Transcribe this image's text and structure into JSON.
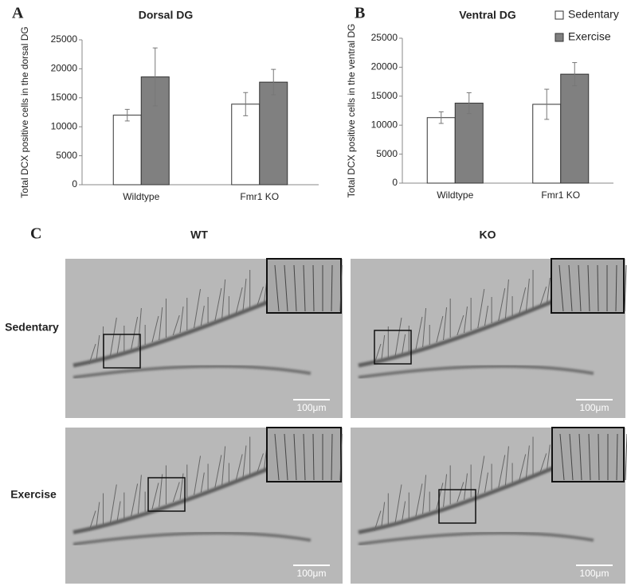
{
  "chart_data": [
    {
      "type": "bar",
      "panel": "A",
      "title": "Dorsal DG",
      "y_label": "Total DCX positive cells in the dorsal DG",
      "categories": [
        "Wildtype",
        "Fmr1 KO"
      ],
      "series": [
        {
          "color": "#ffffff",
          "values": [
            12000,
            13900
          ],
          "errors": [
            1000,
            2000
          ]
        },
        {
          "color": "#808080",
          "values": [
            18600,
            17700
          ],
          "errors": [
            5000,
            2200
          ]
        }
      ],
      "ylim": [
        0,
        25000
      ],
      "yticks": [
        0,
        5000,
        10000,
        15000,
        20000,
        25000
      ]
    },
    {
      "type": "bar",
      "panel": "B",
      "title": "Ventral DG",
      "y_label": "Total DCX positive cells in the ventral DG",
      "categories": [
        "Wildtype",
        "Fmr1 KO"
      ],
      "series": [
        {
          "name": "Sedentary",
          "color": "#ffffff",
          "values": [
            11300,
            13600
          ],
          "errors": [
            1000,
            2600
          ]
        },
        {
          "name": "Exercise",
          "color": "#808080",
          "values": [
            13800,
            18800
          ],
          "errors": [
            1800,
            2000
          ]
        }
      ],
      "ylim": [
        0,
        25000
      ],
      "yticks": [
        0,
        5000,
        10000,
        15000,
        20000,
        25000
      ],
      "legend": "top-right"
    }
  ],
  "panel_c": {
    "panel": "C",
    "columns": [
      "WT",
      "KO"
    ],
    "rows": [
      "Sedentary",
      "Exercise"
    ],
    "scale_bars": [
      "100μm",
      "100μm",
      "100μm",
      "100μm"
    ]
  }
}
